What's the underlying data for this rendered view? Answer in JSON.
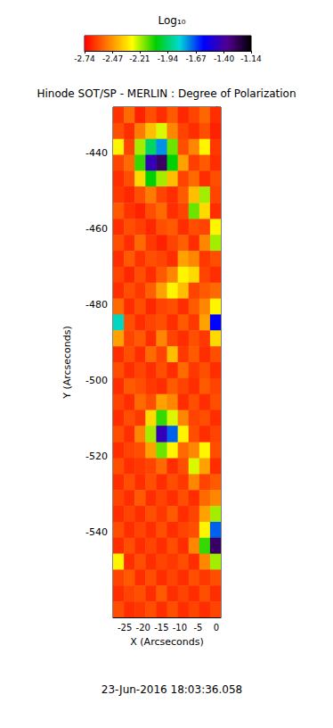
{
  "chart_data": {
    "type": "heatmap",
    "title": "Hinode SOT/SP - MERLIN : Degree of Polarization",
    "x_label": "X (Arcseconds)",
    "y_label": "Y (Arcseconds)",
    "annotation": "23-Jun-2016 18:03:36.058",
    "xlim": [
      -28.2,
      1.2
    ],
    "ylim": [
      -562.4,
      -427.8
    ],
    "xticks": [
      -25,
      -20,
      -15,
      -10,
      -5,
      0
    ],
    "yticks": [
      -540,
      -520,
      -500,
      -480,
      -460,
      -440
    ],
    "x": [
      -26.73,
      -23.79,
      -20.85,
      -17.91,
      -14.97,
      -12.03,
      -9.09,
      -6.15,
      -3.21,
      -0.27
    ],
    "y": [
      -429.9,
      -434.1,
      -438.3,
      -442.5,
      -446.7,
      -450.9,
      -455.2,
      -459.4,
      -463.6,
      -467.8,
      -472.0,
      -476.2,
      -480.4,
      -484.6,
      -488.8,
      -493.0,
      -497.2,
      -501.4,
      -505.6,
      -509.8,
      -514.0,
      -518.3,
      -522.5,
      -526.7,
      -530.9,
      -535.1,
      -539.3,
      -543.5,
      -547.7,
      -551.9,
      -556.1,
      -560.3
    ],
    "values": [
      [
        -2.65,
        -2.55,
        -2.68,
        -2.6,
        -2.66,
        -2.58,
        -2.67,
        -2.62,
        -2.56,
        -2.66
      ],
      [
        -2.6,
        -2.66,
        -2.52,
        -2.4,
        -2.25,
        -2.5,
        -2.62,
        -2.66,
        -2.6,
        -2.68
      ],
      [
        -2.3,
        -2.62,
        -2.2,
        -1.95,
        -1.75,
        -2.15,
        -2.6,
        -2.5,
        -2.3,
        -2.64
      ],
      [
        -2.62,
        -2.55,
        -2.1,
        -1.45,
        -1.3,
        -2.05,
        -2.45,
        -2.63,
        -2.58,
        -2.66
      ],
      [
        -2.66,
        -2.6,
        -2.35,
        -2.05,
        -2.2,
        -2.4,
        -2.62,
        -2.55,
        -2.66,
        -2.6
      ],
      [
        -2.64,
        -2.67,
        -2.6,
        -2.52,
        -2.62,
        -2.66,
        -2.58,
        -2.4,
        -2.2,
        -2.62
      ],
      [
        -2.58,
        -2.65,
        -2.68,
        -2.6,
        -2.55,
        -2.66,
        -2.62,
        -2.15,
        -2.35,
        -2.66
      ],
      [
        -2.66,
        -2.6,
        -2.63,
        -2.67,
        -2.6,
        -2.58,
        -2.66,
        -2.6,
        -2.62,
        -2.3
      ],
      [
        -2.6,
        -2.66,
        -2.55,
        -2.64,
        -2.68,
        -2.62,
        -2.57,
        -2.66,
        -2.5,
        -2.2
      ],
      [
        -2.66,
        -2.58,
        -2.65,
        -2.6,
        -2.62,
        -2.66,
        -2.45,
        -2.5,
        -2.64,
        -2.6
      ],
      [
        -2.62,
        -2.67,
        -2.6,
        -2.66,
        -2.58,
        -2.5,
        -2.3,
        -2.35,
        -2.62,
        -2.66
      ],
      [
        -2.66,
        -2.6,
        -2.64,
        -2.57,
        -2.45,
        -2.3,
        -2.4,
        -2.62,
        -2.58,
        -2.55
      ],
      [
        -2.55,
        -2.66,
        -2.6,
        -2.67,
        -2.62,
        -2.6,
        -2.66,
        -2.58,
        -2.5,
        -2.3
      ],
      [
        -1.85,
        -2.6,
        -2.66,
        -2.62,
        -2.6,
        -2.66,
        -2.58,
        -2.64,
        -2.45,
        -1.6
      ],
      [
        -2.45,
        -2.62,
        -2.58,
        -2.66,
        -2.5,
        -2.62,
        -2.66,
        -2.6,
        -2.64,
        -2.35
      ],
      [
        -2.66,
        -2.6,
        -2.66,
        -2.55,
        -2.62,
        -2.4,
        -2.64,
        -2.58,
        -2.66,
        -2.6
      ],
      [
        -2.6,
        -2.66,
        -2.62,
        -2.66,
        -2.6,
        -2.66,
        -2.55,
        -2.64,
        -2.6,
        -2.66
      ],
      [
        -2.66,
        -2.58,
        -2.6,
        -2.64,
        -2.66,
        -2.58,
        -2.62,
        -2.66,
        -2.58,
        -2.62
      ],
      [
        -2.62,
        -2.66,
        -2.55,
        -2.6,
        -2.45,
        -2.5,
        -2.66,
        -2.6,
        -2.66,
        -2.6
      ],
      [
        -2.66,
        -2.6,
        -2.64,
        -2.35,
        -2.1,
        -2.25,
        -2.5,
        -2.62,
        -2.6,
        -2.66
      ],
      [
        -2.6,
        -2.66,
        -2.5,
        -2.2,
        -1.45,
        -1.7,
        -2.3,
        -2.6,
        -2.66,
        -2.62
      ],
      [
        -2.66,
        -2.62,
        -2.6,
        -2.45,
        -2.15,
        -2.3,
        -2.55,
        -2.5,
        -2.3,
        -2.6
      ],
      [
        -2.6,
        -2.66,
        -2.64,
        -2.62,
        -2.55,
        -2.66,
        -2.6,
        -2.25,
        -2.45,
        -2.66
      ],
      [
        -2.66,
        -2.6,
        -2.66,
        -2.6,
        -2.66,
        -2.6,
        -2.64,
        -2.5,
        -2.62,
        -2.58
      ],
      [
        -2.62,
        -2.66,
        -2.58,
        -2.66,
        -2.62,
        -2.66,
        -2.6,
        -2.66,
        -2.55,
        -2.5
      ],
      [
        -2.66,
        -2.62,
        -2.66,
        -2.6,
        -2.64,
        -2.58,
        -2.66,
        -2.62,
        -2.45,
        -2.2
      ],
      [
        -2.6,
        -2.66,
        -2.62,
        -2.66,
        -2.6,
        -2.66,
        -2.62,
        -2.6,
        -2.3,
        -1.7
      ],
      [
        -2.66,
        -2.6,
        -2.66,
        -2.62,
        -2.66,
        -2.6,
        -2.66,
        -2.5,
        -2.1,
        -1.3
      ],
      [
        -2.3,
        -2.66,
        -2.6,
        -2.66,
        -2.62,
        -2.64,
        -2.6,
        -2.66,
        -2.5,
        -2.2
      ],
      [
        -2.62,
        -2.58,
        -2.66,
        -2.6,
        -2.66,
        -2.62,
        -2.66,
        -2.6,
        -2.64,
        -2.6
      ],
      [
        -2.66,
        -2.62,
        -2.6,
        -2.66,
        -2.58,
        -2.66,
        -2.62,
        -2.66,
        -2.6,
        -2.66
      ],
      [
        -2.6,
        -2.66,
        -2.64,
        -2.6,
        -2.66,
        -2.6,
        -2.66,
        -2.62,
        -2.66,
        -2.62
      ]
    ],
    "colorbar": {
      "label": "Log₁₀",
      "range": [
        -2.74,
        -1.14
      ],
      "ticks": [
        -2.74,
        -2.47,
        -2.21,
        -1.94,
        -1.67,
        {
          "value": -1.4,
          "label": "-1.40"
        },
        -1.14
      ]
    }
  }
}
